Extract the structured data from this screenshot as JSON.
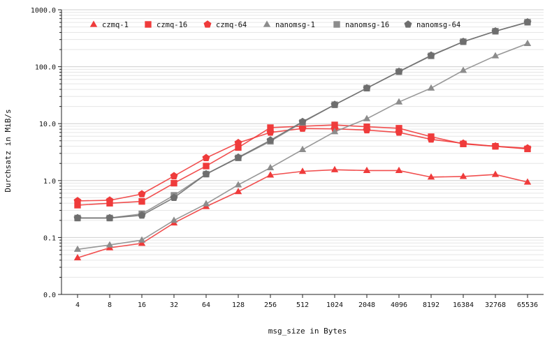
{
  "chart_data": {
    "type": "line",
    "title": "",
    "xlabel": "msg_size in Bytes",
    "ylabel": "Durchsatz in MiB/s",
    "yscale": "log",
    "ylim": [
      0.01,
      1000
    ],
    "ytick_values": [
      0.01,
      0.1,
      1,
      10,
      100,
      1000
    ],
    "ytick_labels": [
      "0.0",
      "0.1",
      "1.0",
      "10.0",
      "100.0",
      "1000.0"
    ],
    "categories": [
      "4",
      "8",
      "16",
      "32",
      "64",
      "128",
      "256",
      "512",
      "1024",
      "2048",
      "4096",
      "8192",
      "16384",
      "32768",
      "65536"
    ],
    "grid": true,
    "legend_position": "top",
    "series": [
      {
        "name": "czmq-1",
        "color": "#ef3b3b",
        "marker": "triangle",
        "values": [
          0.044,
          0.066,
          0.079,
          0.18,
          0.35,
          0.64,
          1.25,
          1.45,
          1.55,
          1.5,
          1.5,
          1.15,
          1.18,
          1.28,
          0.94
        ]
      },
      {
        "name": "czmq-16",
        "color": "#ef3b3b",
        "marker": "square",
        "values": [
          0.37,
          0.4,
          0.43,
          0.9,
          1.8,
          3.8,
          8.5,
          9.0,
          9.5,
          8.8,
          8.3,
          5.9,
          4.4,
          4.0,
          3.6
        ]
      },
      {
        "name": "czmq-64",
        "color": "#ef3b3b",
        "marker": "pentagon",
        "values": [
          0.44,
          0.45,
          0.58,
          1.2,
          2.5,
          4.6,
          7.0,
          8.2,
          8.1,
          7.7,
          7.0,
          5.3,
          4.5,
          4.0,
          3.7
        ]
      },
      {
        "name": "nanomsg-1",
        "color": "#8c8c8c",
        "marker": "triangle",
        "values": [
          0.062,
          0.074,
          0.09,
          0.2,
          0.39,
          0.84,
          1.68,
          3.5,
          7.2,
          12.2,
          24.0,
          42.0,
          86.0,
          155.0,
          255.0
        ]
      },
      {
        "name": "nanomsg-16",
        "color": "#8c8c8c",
        "marker": "square",
        "values": [
          0.22,
          0.22,
          0.26,
          0.55,
          1.3,
          2.5,
          4.9,
          10.5,
          21.5,
          42.0,
          82.0,
          155.0,
          275.0,
          420.0,
          605.0
        ]
      },
      {
        "name": "nanomsg-64",
        "color": "#6e6e6e",
        "marker": "pentagon",
        "values": [
          0.22,
          0.22,
          0.245,
          0.5,
          1.3,
          2.55,
          5.1,
          10.8,
          21.5,
          42.0,
          82.0,
          158.0,
          275.0,
          420.0,
          605.0
        ]
      }
    ]
  }
}
